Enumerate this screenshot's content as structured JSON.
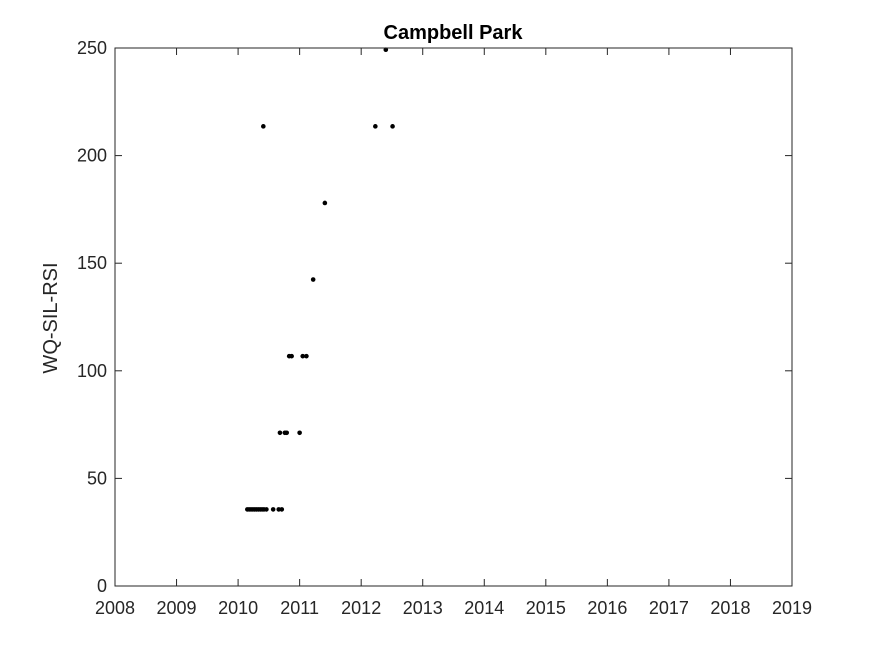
{
  "chart_data": {
    "type": "scatter",
    "title": "Campbell Park",
    "xlabel": "",
    "ylabel": "WQ-SIL-RSI",
    "xlim": [
      2008,
      2019
    ],
    "ylim": [
      0,
      250
    ],
    "xticks": [
      2008,
      2009,
      2010,
      2011,
      2012,
      2013,
      2014,
      2015,
      2016,
      2017,
      2018,
      2019
    ],
    "yticks": [
      0,
      50,
      100,
      150,
      200,
      250
    ],
    "xtick_labels": [
      "2008",
      "2009",
      "2010",
      "2011",
      "2012",
      "2013",
      "2014",
      "2015",
      "2016",
      "2017",
      "2018",
      "2019"
    ],
    "ytick_labels": [
      "0",
      "50",
      "100",
      "150",
      "200",
      "250"
    ],
    "grid": false,
    "marker_color": "#000000",
    "points": [
      {
        "x": 2010.15,
        "y": 35.6
      },
      {
        "x": 2010.18,
        "y": 35.6
      },
      {
        "x": 2010.21,
        "y": 35.6
      },
      {
        "x": 2010.24,
        "y": 35.6
      },
      {
        "x": 2010.27,
        "y": 35.6
      },
      {
        "x": 2010.3,
        "y": 35.6
      },
      {
        "x": 2010.33,
        "y": 35.6
      },
      {
        "x": 2010.36,
        "y": 35.6
      },
      {
        "x": 2010.39,
        "y": 35.6
      },
      {
        "x": 2010.42,
        "y": 35.6
      },
      {
        "x": 2010.46,
        "y": 35.6
      },
      {
        "x": 2010.57,
        "y": 35.6
      },
      {
        "x": 2010.66,
        "y": 35.6
      },
      {
        "x": 2010.71,
        "y": 35.6
      },
      {
        "x": 2010.68,
        "y": 71.2
      },
      {
        "x": 2010.76,
        "y": 71.2
      },
      {
        "x": 2010.79,
        "y": 71.2
      },
      {
        "x": 2011.0,
        "y": 71.2
      },
      {
        "x": 2010.83,
        "y": 106.8
      },
      {
        "x": 2010.87,
        "y": 106.8
      },
      {
        "x": 2011.05,
        "y": 106.8
      },
      {
        "x": 2011.11,
        "y": 106.8
      },
      {
        "x": 2011.22,
        "y": 142.4
      },
      {
        "x": 2011.41,
        "y": 178.0
      },
      {
        "x": 2010.41,
        "y": 213.6
      },
      {
        "x": 2012.23,
        "y": 213.6
      },
      {
        "x": 2012.51,
        "y": 213.6
      },
      {
        "x": 2012.4,
        "y": 249.2
      }
    ]
  }
}
